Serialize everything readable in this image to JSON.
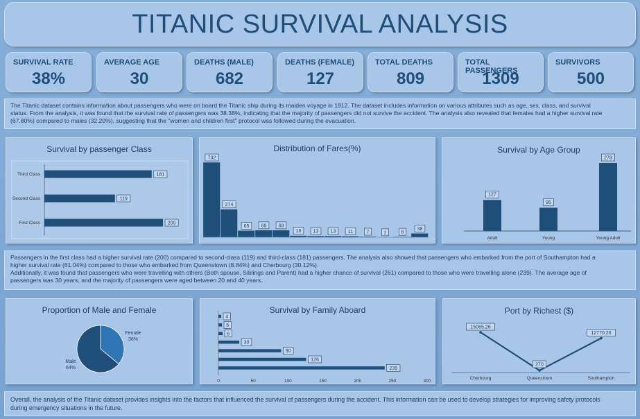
{
  "title": "TITANIC SURVIVAL ANALYSIS",
  "kpis": [
    {
      "label": "SURVIVAL RATE",
      "value": "38%"
    },
    {
      "label": "AVERAGE AGE",
      "value": "30"
    },
    {
      "label": "DEATHS (MALE)",
      "value": "682"
    },
    {
      "label": "DEATHS (FEMALE)",
      "value": "127"
    },
    {
      "label": "TOTAL DEATHS",
      "value": "809"
    },
    {
      "label": "TOTAL PASSENGERS",
      "value": "1309"
    },
    {
      "label": "SURVIVORS",
      "value": "500"
    }
  ],
  "intro_lines": [
    "The Titanic dataset contains information about passengers who were on board the Titanic ship during its maiden voyage in 1912. The dataset includes information on various attributes such as age, sex, class, and survival",
    "status. From the analysis, it was found that the survival rate of passengers was 38.38%, indicating that the majority of passengers did not survive the accident. The analysis also revealed that females had a higher survival rate",
    "(67.80%) compared to males (32.20%), suggesting that the \"women and children first\" protocol was followed during the evacuation."
  ],
  "middle_lines": [
    "Passengers in the first class had a higher survival rate (200) compared to second-class (119) and third-class (181) passengers. The analysis also showed that passengers who embarked from the port of Southampton had a",
    "higher survival rate (61.04%) compared to those who embarked from Queenstown (8.84%) and Cherbourg (30.12%).",
    "Additionally, it was found that passengers who were travelling with others (Both spouse, Siblings and Parent)  had a higher chance of survival (261) compared to those who were travelling alone (239). The average age of",
    "passengers was 30 years, and the majority of passengers were aged between 20 and 40 years."
  ],
  "footer_lines": [
    "Overall, the analysis of the Titanic dataset provides insights into the factors that influenced the survival of passengers during the accident. This information can be used to develop strategies for improving safety protocols",
    "during emergency situations in the future."
  ],
  "colors": {
    "bar": "#1f4e79",
    "pie_light": "#2e75b6",
    "pie_dark": "#1f4e79",
    "background": "#86afd8",
    "card": "#a7c6e8"
  },
  "chart_data": [
    {
      "id": "class",
      "type": "bar",
      "orientation": "horizontal",
      "title": "Survival by passenger Class",
      "categories": [
        "Third Class",
        "Second Class",
        "First Class"
      ],
      "values": [
        181,
        119,
        200
      ]
    },
    {
      "id": "fares",
      "type": "bar",
      "title": "Distribution of Fares(%)",
      "values": [
        732,
        274,
        65,
        69,
        69,
        16,
        13,
        13,
        11,
        7,
        1,
        6,
        38
      ],
      "labels": [
        "732",
        "274",
        "65",
        "69",
        "69",
        "16",
        "13",
        "13",
        "11",
        "7",
        "1",
        "6",
        "38"
      ]
    },
    {
      "id": "age",
      "type": "bar",
      "title": "Survival by Age Group",
      "categories": [
        "Adult",
        "Young",
        "Young Adult"
      ],
      "values": [
        127,
        95,
        278
      ]
    },
    {
      "id": "gender",
      "type": "pie",
      "title": "Proportion of Male and Female",
      "slices": [
        {
          "label": "Female",
          "pct_label": "36%",
          "value": 36
        },
        {
          "label": "Male",
          "pct_label": "64%",
          "value": 64
        }
      ]
    },
    {
      "id": "family",
      "type": "bar",
      "orientation": "horizontal",
      "title": "Survival by Family Aboard",
      "values": [
        4,
        5,
        6,
        30,
        90,
        126,
        239
      ],
      "xticks": [
        "0",
        "50",
        "100",
        "150",
        "200",
        "250",
        "300"
      ],
      "xlim": [
        0,
        300
      ]
    },
    {
      "id": "port",
      "type": "line",
      "title": "Port by Richest ($)",
      "categories": [
        "Cherbourg",
        "Queenstown",
        "Southampton"
      ],
      "values": [
        15065.26,
        270,
        12770.26
      ],
      "labels": [
        "15065.26",
        "270",
        "12770.26"
      ]
    }
  ]
}
